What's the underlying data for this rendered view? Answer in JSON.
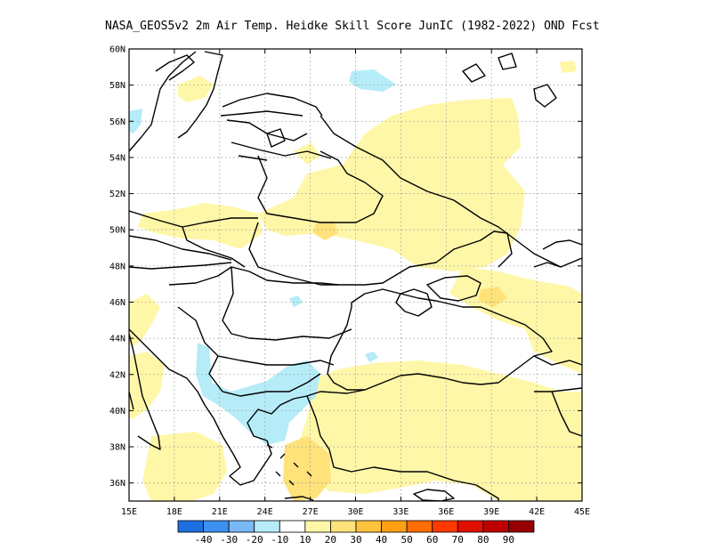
{
  "title": "NASA_GEOS5v2  2m Air Temp. Heidke Skill Score JunIC (1982-2022) OND Fcst",
  "map": {
    "lon_range": [
      15,
      45
    ],
    "lat_range": [
      35,
      60
    ],
    "lon_ticks": [
      "15E",
      "18E",
      "21E",
      "24E",
      "27E",
      "30E",
      "33E",
      "36E",
      "39E",
      "42E",
      "45E"
    ],
    "lat_ticks": [
      "36N",
      "38N",
      "40N",
      "42N",
      "44N",
      "46N",
      "48N",
      "50N",
      "52N",
      "54N",
      "56N",
      "58N",
      "60N"
    ],
    "gridlines": "dotted",
    "colors": {
      "light_yellow": "#fff7a8",
      "yellow": "#ffe27a",
      "light_blue": "#b5ecf8"
    }
  },
  "colorbar": {
    "labels": [
      "-40",
      "-30",
      "-20",
      "-10",
      "10",
      "20",
      "30",
      "40",
      "50",
      "60",
      "70",
      "80",
      "90"
    ],
    "colors": [
      "#1e6ee0",
      "#3c90f0",
      "#7ab8f5",
      "#b5ecf8",
      "#ffffff",
      "#fff7a8",
      "#ffe27a",
      "#ffc23c",
      "#ff9f14",
      "#ff6c00",
      "#ff3a00",
      "#e11000",
      "#be0000",
      "#960000"
    ]
  }
}
